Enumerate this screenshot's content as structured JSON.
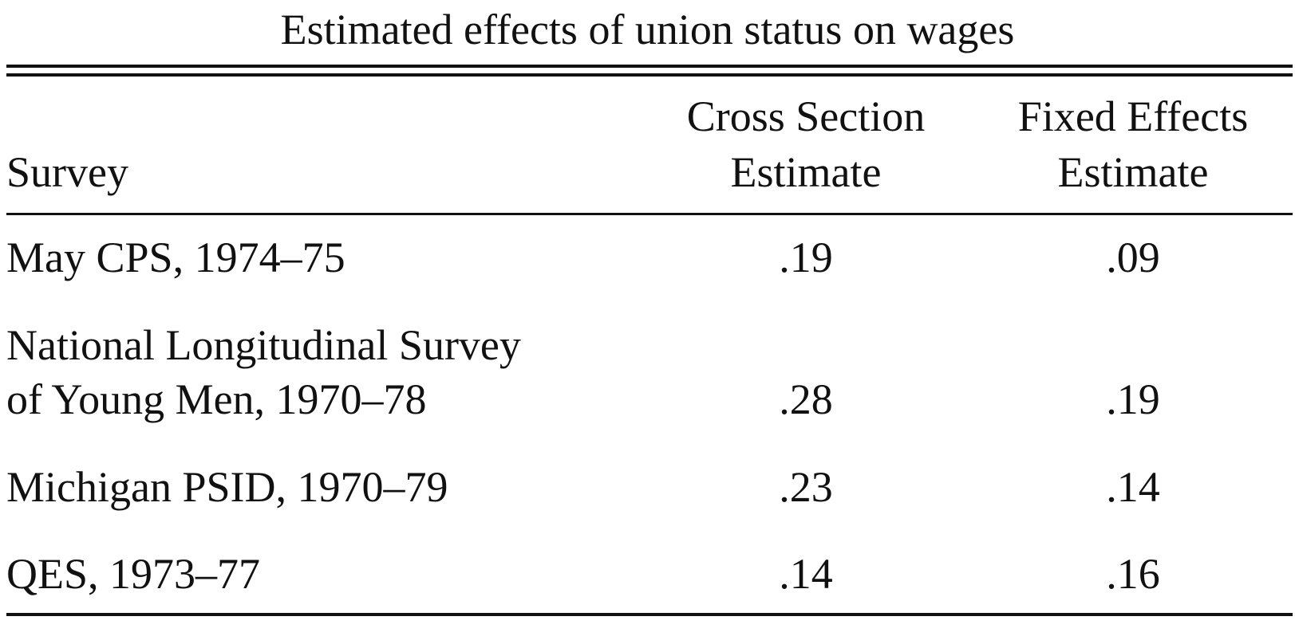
{
  "table": {
    "title": "Estimated effects of union status on wages",
    "header": {
      "survey": "Survey",
      "cross_section": [
        "Cross Section",
        "Estimate"
      ],
      "fixed_effects": [
        "Fixed Effects",
        "Estimate"
      ]
    },
    "rows": [
      {
        "survey": [
          "May CPS, 1974–75"
        ],
        "cross_section": ".19",
        "fixed_effects": ".09"
      },
      {
        "survey": [
          "National Longitudinal Survey",
          "of Young Men, 1970–78"
        ],
        "cross_section": ".28",
        "fixed_effects": ".19"
      },
      {
        "survey": [
          "Michigan PSID, 1970–79"
        ],
        "cross_section": ".23",
        "fixed_effects": ".14"
      },
      {
        "survey": [
          "QES, 1973–77"
        ],
        "cross_section": ".14",
        "fixed_effects": ".16"
      }
    ]
  }
}
